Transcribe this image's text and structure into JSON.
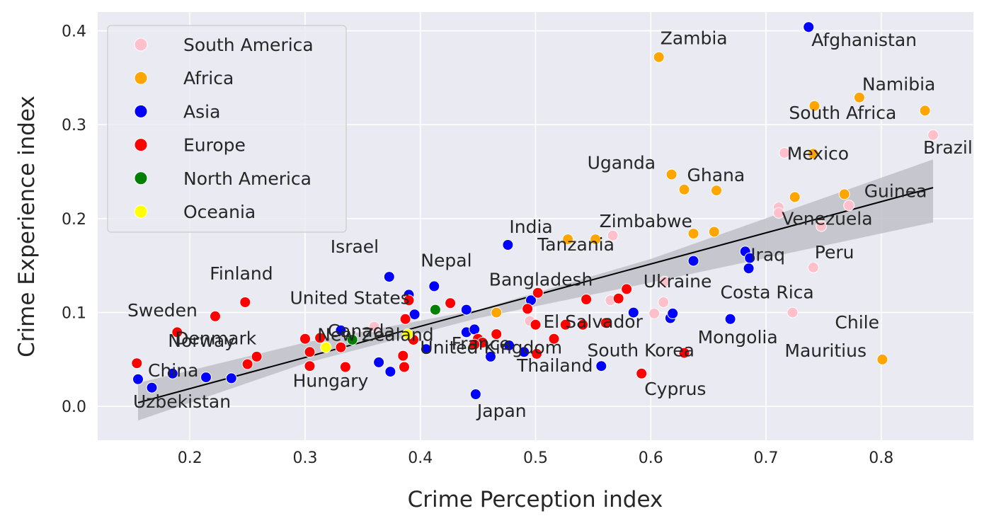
{
  "chart_data": {
    "type": "scatter",
    "xlabel": "Crime Perception index",
    "ylabel": "Crime Experience index",
    "xlim": [
      0.12,
      0.88
    ],
    "ylim": [
      -0.036,
      0.42
    ],
    "xticks": [
      "0.2",
      "0.3",
      "0.4",
      "0.5",
      "0.6",
      "0.7",
      "0.8"
    ],
    "yticks": [
      "0.0",
      "0.1",
      "0.2",
      "0.3",
      "0.4"
    ],
    "grid": true,
    "legend_position": "top-left",
    "colors": {
      "South America": "#ffc0cb",
      "Africa": "#ffa500",
      "Asia": "#0000ff",
      "Europe": "#ff0000",
      "North America": "#008000",
      "Oceania": "#ffff00",
      "background": "#eaeaf2",
      "regression": "#000000",
      "confidence_band": "#c0c0c8"
    },
    "legend": [
      "South America",
      "Africa",
      "Asia",
      "Europe",
      "North America",
      "Oceania"
    ],
    "regression": {
      "x": [
        0.155,
        0.845
      ],
      "y": [
        0.004,
        0.233
      ]
    },
    "confidence_band": {
      "x": [
        0.155,
        0.3,
        0.45,
        0.6,
        0.845
      ],
      "upper": [
        0.025,
        0.068,
        0.103,
        0.157,
        0.263
      ],
      "lower": [
        -0.015,
        0.046,
        0.094,
        0.132,
        0.196
      ]
    },
    "series": [
      {
        "name": "South America",
        "points": [
          [
            0.845,
            0.289
          ],
          [
            0.716,
            0.27
          ],
          [
            0.711,
            0.212
          ],
          [
            0.711,
            0.206
          ],
          [
            0.772,
            0.214
          ],
          [
            0.748,
            0.192
          ],
          [
            0.741,
            0.148
          ],
          [
            0.723,
            0.1
          ],
          [
            0.611,
            0.111
          ],
          [
            0.612,
            0.133
          ],
          [
            0.567,
            0.182
          ],
          [
            0.565,
            0.113
          ],
          [
            0.603,
            0.099
          ],
          [
            0.495,
            0.091
          ],
          [
            0.36,
            0.085
          ]
        ]
      },
      {
        "name": "Africa",
        "points": [
          [
            0.607,
            0.372
          ],
          [
            0.742,
            0.32
          ],
          [
            0.781,
            0.329
          ],
          [
            0.838,
            0.315
          ],
          [
            0.741,
            0.269
          ],
          [
            0.618,
            0.247
          ],
          [
            0.629,
            0.231
          ],
          [
            0.657,
            0.23
          ],
          [
            0.725,
            0.223
          ],
          [
            0.768,
            0.226
          ],
          [
            0.528,
            0.178
          ],
          [
            0.552,
            0.178
          ],
          [
            0.637,
            0.184
          ],
          [
            0.655,
            0.186
          ],
          [
            0.466,
            0.1
          ],
          [
            0.801,
            0.05
          ]
        ]
      },
      {
        "name": "Asia",
        "points": [
          [
            0.737,
            0.404
          ],
          [
            0.476,
            0.172
          ],
          [
            0.373,
            0.138
          ],
          [
            0.412,
            0.128
          ],
          [
            0.637,
            0.155
          ],
          [
            0.682,
            0.165
          ],
          [
            0.686,
            0.158
          ],
          [
            0.685,
            0.147
          ],
          [
            0.39,
            0.119
          ],
          [
            0.395,
            0.098
          ],
          [
            0.44,
            0.103
          ],
          [
            0.585,
            0.1
          ],
          [
            0.617,
            0.094
          ],
          [
            0.619,
            0.099
          ],
          [
            0.669,
            0.093
          ],
          [
            0.331,
            0.081
          ],
          [
            0.44,
            0.079
          ],
          [
            0.447,
            0.082
          ],
          [
            0.477,
            0.065
          ],
          [
            0.49,
            0.058
          ],
          [
            0.405,
            0.061
          ],
          [
            0.364,
            0.047
          ],
          [
            0.374,
            0.037
          ],
          [
            0.461,
            0.053
          ],
          [
            0.557,
            0.043
          ],
          [
            0.448,
            0.013
          ],
          [
            0.155,
            0.029
          ],
          [
            0.167,
            0.02
          ],
          [
            0.185,
            0.035
          ],
          [
            0.214,
            0.031
          ],
          [
            0.236,
            0.03
          ],
          [
            0.496,
            0.113
          ]
        ]
      },
      {
        "name": "Europe",
        "points": [
          [
            0.248,
            0.111
          ],
          [
            0.222,
            0.096
          ],
          [
            0.189,
            0.079
          ],
          [
            0.154,
            0.046
          ],
          [
            0.25,
            0.045
          ],
          [
            0.258,
            0.053
          ],
          [
            0.3,
            0.072
          ],
          [
            0.304,
            0.058
          ],
          [
            0.304,
            0.043
          ],
          [
            0.313,
            0.073
          ],
          [
            0.331,
            0.063
          ],
          [
            0.335,
            0.042
          ],
          [
            0.387,
            0.093
          ],
          [
            0.39,
            0.113
          ],
          [
            0.394,
            0.071
          ],
          [
            0.385,
            0.054
          ],
          [
            0.386,
            0.042
          ],
          [
            0.426,
            0.11
          ],
          [
            0.45,
            0.072
          ],
          [
            0.454,
            0.068
          ],
          [
            0.447,
            0.066
          ],
          [
            0.466,
            0.077
          ],
          [
            0.493,
            0.104
          ],
          [
            0.502,
            0.121
          ],
          [
            0.5,
            0.087
          ],
          [
            0.501,
            0.056
          ],
          [
            0.516,
            0.072
          ],
          [
            0.526,
            0.087
          ],
          [
            0.541,
            0.087
          ],
          [
            0.544,
            0.114
          ],
          [
            0.561,
            0.089
          ],
          [
            0.572,
            0.115
          ],
          [
            0.579,
            0.125
          ],
          [
            0.592,
            0.035
          ],
          [
            0.629,
            0.057
          ]
        ]
      },
      {
        "name": "North America",
        "points": [
          [
            0.413,
            0.103
          ],
          [
            0.341,
            0.071
          ]
        ]
      },
      {
        "name": "Oceania",
        "points": [
          [
            0.318,
            0.063
          ],
          [
            0.389,
            0.077
          ]
        ]
      }
    ],
    "annotations": [
      {
        "text": "Zambia",
        "x": 0.607,
        "y": 0.372
      },
      {
        "text": "Afghanistan",
        "x": 0.737,
        "y": 0.404
      },
      {
        "text": "Namibia",
        "x": 0.781,
        "y": 0.329
      },
      {
        "text": "South Africa",
        "x": 0.742,
        "y": 0.3
      },
      {
        "text": "Brazil",
        "x": 0.845,
        "y": 0.289
      },
      {
        "text": "Uganda",
        "x": 0.618,
        "y": 0.247
      },
      {
        "text": "Mexico",
        "x": 0.741,
        "y": 0.269
      },
      {
        "text": "Ghana",
        "x": 0.629,
        "y": 0.231
      },
      {
        "text": "Guinea",
        "x": 0.768,
        "y": 0.226
      },
      {
        "text": "Zimbabwe",
        "x": 0.567,
        "y": 0.182
      },
      {
        "text": "India",
        "x": 0.476,
        "y": 0.172
      },
      {
        "text": "Venezuela",
        "x": 0.748,
        "y": 0.192
      },
      {
        "text": "Tanzania",
        "x": 0.552,
        "y": 0.178
      },
      {
        "text": "Israel",
        "x": 0.373,
        "y": 0.138
      },
      {
        "text": "Iraq",
        "x": 0.686,
        "y": 0.158
      },
      {
        "text": "Peru",
        "x": 0.741,
        "y": 0.148
      },
      {
        "text": "Finland",
        "x": 0.248,
        "y": 0.111
      },
      {
        "text": "Nepal",
        "x": 0.412,
        "y": 0.128
      },
      {
        "text": "Ukraine",
        "x": 0.612,
        "y": 0.133
      },
      {
        "text": "Bangladesh",
        "x": 0.502,
        "y": 0.121
      },
      {
        "text": "Sweden",
        "x": 0.222,
        "y": 0.096
      },
      {
        "text": "United States",
        "x": 0.39,
        "y": 0.119
      },
      {
        "text": "Costa Rica",
        "x": 0.723,
        "y": 0.1
      },
      {
        "text": "New Zealand",
        "x": 0.318,
        "y": 0.063
      },
      {
        "text": "Canada",
        "x": 0.341,
        "y": 0.071
      },
      {
        "text": "El Salvador",
        "x": 0.5,
        "y": 0.087
      },
      {
        "text": "Chile",
        "x": 0.801,
        "y": 0.05
      },
      {
        "text": "Denmark",
        "x": 0.189,
        "y": 0.079
      },
      {
        "text": "Mongolia",
        "x": 0.669,
        "y": 0.093
      },
      {
        "text": "France",
        "x": 0.454,
        "y": 0.068
      },
      {
        "text": "South Korea",
        "x": 0.629,
        "y": 0.057
      },
      {
        "text": "Norway",
        "x": 0.154,
        "y": 0.046
      },
      {
        "text": "Mauritius",
        "x": 0.801,
        "y": 0.05
      },
      {
        "text": "United Kingdom",
        "x": 0.331,
        "y": 0.063
      },
      {
        "text": "Thailand",
        "x": 0.501,
        "y": 0.056
      },
      {
        "text": "China",
        "x": 0.155,
        "y": 0.029
      },
      {
        "text": "Hungary",
        "x": 0.25,
        "y": 0.045
      },
      {
        "text": "Cyprus",
        "x": 0.592,
        "y": 0.035
      },
      {
        "text": "Japan",
        "x": 0.448,
        "y": 0.013
      },
      {
        "text": "Uzbekistan",
        "x": 0.155,
        "y": 0.029
      }
    ]
  }
}
